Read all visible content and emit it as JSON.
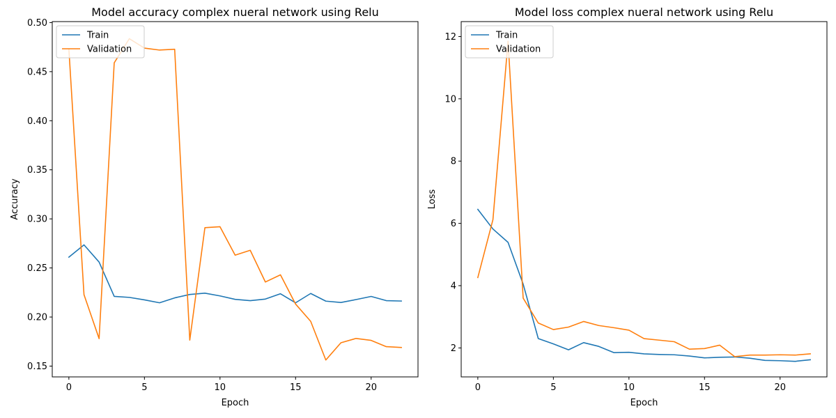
{
  "chart_data": [
    {
      "type": "line",
      "title": "Model accuracy complex nueral network using Relu",
      "xlabel": "Epoch",
      "ylabel": "Accuracy",
      "xlim": [
        -1.1,
        23.1
      ],
      "ylim": [
        0.139,
        0.501
      ],
      "xticks": [
        0,
        5,
        10,
        15,
        20
      ],
      "yticks": [
        0.15,
        0.2,
        0.25,
        0.3,
        0.35,
        0.4,
        0.45,
        0.5
      ],
      "ytick_labels": [
        "0.15",
        "0.20",
        "0.25",
        "0.30",
        "0.35",
        "0.40",
        "0.45",
        "0.50"
      ],
      "legend": "top-left",
      "x": [
        0,
        1,
        2,
        3,
        4,
        5,
        6,
        7,
        8,
        9,
        10,
        11,
        12,
        13,
        14,
        15,
        16,
        17,
        18,
        19,
        20,
        21,
        22
      ],
      "series": [
        {
          "name": "Train",
          "color": "#1f77b4",
          "values": [
            0.261,
            0.2735,
            0.256,
            0.221,
            0.22,
            0.2175,
            0.2145,
            0.2195,
            0.223,
            0.2243,
            0.2215,
            0.218,
            0.2167,
            0.2183,
            0.2237,
            0.2145,
            0.224,
            0.2162,
            0.2148,
            0.2178,
            0.221,
            0.2167,
            0.2163
          ]
        },
        {
          "name": "Validation",
          "color": "#ff7f0e",
          "values": [
            0.473,
            0.2228,
            0.178,
            0.459,
            0.4836,
            0.474,
            0.472,
            0.4728,
            0.1765,
            0.291,
            0.292,
            0.263,
            0.268,
            0.2357,
            0.243,
            0.2132,
            0.1956,
            0.1562,
            0.1738,
            0.1782,
            0.1762,
            0.1698,
            0.169
          ]
        }
      ]
    },
    {
      "type": "line",
      "title": "Model loss complex nueral network using Relu",
      "xlabel": "Epoch",
      "ylabel": "Loss",
      "xlim": [
        -1.1,
        23.1
      ],
      "ylim": [
        1.07,
        12.48
      ],
      "xticks": [
        0,
        5,
        10,
        15,
        20
      ],
      "yticks": [
        2,
        4,
        6,
        8,
        10,
        12
      ],
      "ytick_labels": [
        "2",
        "4",
        "6",
        "8",
        "10",
        "12"
      ],
      "legend": "top-left",
      "x": [
        0,
        1,
        2,
        3,
        4,
        5,
        6,
        7,
        8,
        9,
        10,
        11,
        12,
        13,
        14,
        15,
        16,
        17,
        18,
        19,
        20,
        21,
        22
      ],
      "series": [
        {
          "name": "Train",
          "color": "#1f77b4",
          "values": [
            6.45,
            5.82,
            5.39,
            4.05,
            2.3,
            2.13,
            1.94,
            2.17,
            2.05,
            1.85,
            1.86,
            1.81,
            1.79,
            1.78,
            1.74,
            1.68,
            1.7,
            1.71,
            1.67,
            1.6,
            1.59,
            1.57,
            1.62
          ]
        },
        {
          "name": "Validation",
          "color": "#ff7f0e",
          "values": [
            4.26,
            6.12,
            11.85,
            3.6,
            2.8,
            2.59,
            2.67,
            2.85,
            2.72,
            2.65,
            2.57,
            2.3,
            2.25,
            2.2,
            1.96,
            1.98,
            2.09,
            1.72,
            1.77,
            1.77,
            1.78,
            1.77,
            1.81
          ]
        }
      ]
    }
  ]
}
